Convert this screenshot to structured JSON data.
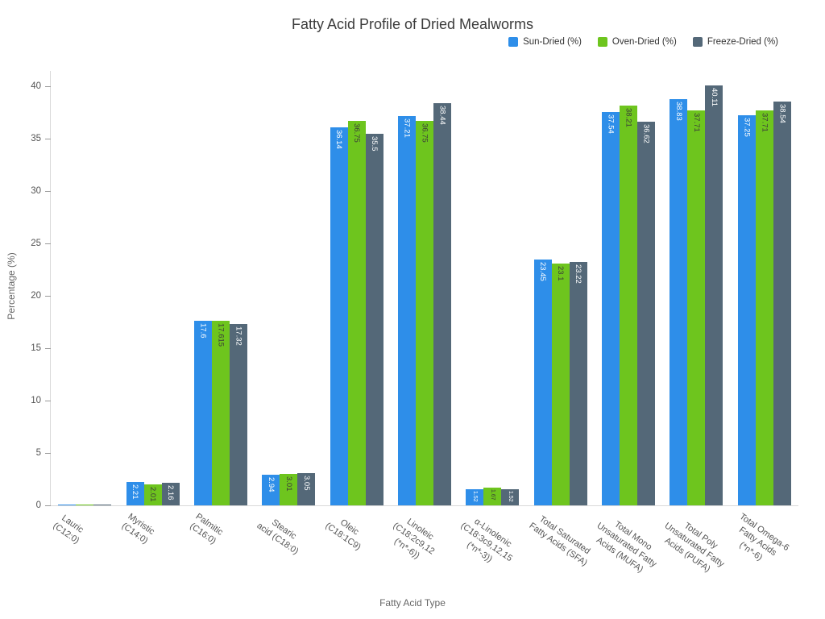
{
  "title": "Fatty Acid Profile of Dried Mealworms",
  "x_axis_title": "Fatty Acid Type",
  "y_axis_title": "Percentage (%)",
  "chart_data": {
    "type": "bar",
    "title": "Fatty Acid Profile of Dried Mealworms",
    "xlabel": "Fatty Acid Type",
    "ylabel": "Percentage (%)",
    "ylim": [
      0,
      41.5
    ],
    "grid": false,
    "legend_position": "top-right",
    "yticks": [
      0,
      5,
      10,
      15,
      20,
      25,
      30,
      35,
      40
    ],
    "categories": [
      "Lauric\n(C12:0)",
      "Myristic\n(C14:0)",
      "Palmitic\n(C16:0)",
      "Stearic\nacid (C18:0)",
      "Oleic\n(C18:1C9)",
      "Linoleic\n(C18:2c9,12\n(*n*-6))",
      "α-Linolenic\n(C18:3c9,12,15\n(*n*-3))",
      "Total Saturated\nFatty Acids (SFA)",
      "Total Mono\nUnsaturated Fatty\nAcids (MUFA)",
      "Total Poly\nUnsaturated Fatty\nAcids (PUFA)",
      "Total Omega-6\nFatty Acids\n(*n*-6)"
    ],
    "series": [
      {
        "name": "Sun-Dried (%)",
        "color": "#2e8ee9",
        "label_color": "#ffffff",
        "values": [
          0.1,
          2.21,
          17.6,
          2.94,
          36.14,
          37.21,
          1.52,
          23.45,
          37.54,
          38.83,
          37.25
        ]
      },
      {
        "name": "Oven-Dried (%)",
        "color": "#6ec51e",
        "label_color": "#3a3a3a",
        "values": [
          0.08,
          2.01,
          17.615,
          3.01,
          36.75,
          36.75,
          1.67,
          23.1,
          38.21,
          37.71,
          37.71
        ]
      },
      {
        "name": "Freeze-Dried (%)",
        "color": "#546878",
        "label_color": "#ffffff",
        "values": [
          0.1,
          2.16,
          17.32,
          3.05,
          35.5,
          38.44,
          1.52,
          23.22,
          36.62,
          40.11,
          38.54
        ]
      }
    ],
    "label_min_show": 1.0
  }
}
